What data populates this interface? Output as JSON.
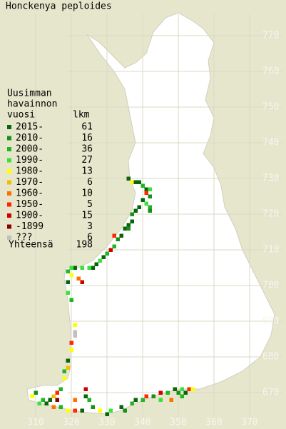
{
  "title": "Honckenya peploides",
  "legend": {
    "header": [
      "Uusimman",
      "havainnon",
      "vuosi"
    ],
    "count_header": "lkm",
    "entries": [
      {
        "label": "2015-",
        "count": 61,
        "color": "#0a640a"
      },
      {
        "label": "2010-",
        "count": 16,
        "color": "#189018"
      },
      {
        "label": "2000-",
        "count": 36,
        "color": "#22b422"
      },
      {
        "label": "1990-",
        "count": 27,
        "color": "#3ce03c"
      },
      {
        "label": "1980-",
        "count": 13,
        "color": "#ffff00"
      },
      {
        "label": "1970-",
        "count": 6,
        "color": "#f0c000"
      },
      {
        "label": "1960-",
        "count": 10,
        "color": "#ff7000"
      },
      {
        "label": "1950-",
        "count": 5,
        "color": "#ff2800"
      },
      {
        "label": "1900-",
        "count": 15,
        "color": "#d00000"
      },
      {
        "label": "-1899",
        "count": 3,
        "color": "#8b0000"
      },
      {
        "label": "???",
        "count": 6,
        "color": "#c0c0c0"
      }
    ],
    "total_label": "Yhteensä",
    "total": 198
  },
  "x_ticks": [
    310,
    320,
    330,
    340,
    350,
    360,
    370
  ],
  "y_ticks": [
    670,
    680,
    690,
    700,
    710,
    720,
    730,
    740,
    750,
    760,
    770
  ],
  "squares": [
    [
      336,
      730,
      0
    ],
    [
      337,
      729,
      4
    ],
    [
      338,
      729,
      0
    ],
    [
      339,
      729,
      0
    ],
    [
      340,
      728,
      2
    ],
    [
      341,
      727,
      0
    ],
    [
      342,
      727,
      3
    ],
    [
      341,
      726,
      7
    ],
    [
      342,
      725,
      1
    ],
    [
      340,
      724,
      0
    ],
    [
      341,
      723,
      3
    ],
    [
      342,
      722,
      2
    ],
    [
      339,
      722,
      0
    ],
    [
      338,
      721,
      0
    ],
    [
      342,
      721,
      1
    ],
    [
      337,
      720,
      1
    ],
    [
      337,
      718,
      0
    ],
    [
      336,
      717,
      0
    ],
    [
      335,
      716,
      0
    ],
    [
      336,
      716,
      1
    ],
    [
      334,
      714,
      0
    ],
    [
      332,
      714,
      7
    ],
    [
      333,
      713,
      1
    ],
    [
      332,
      711,
      2
    ],
    [
      331,
      710,
      8
    ],
    [
      330,
      709,
      2
    ],
    [
      329,
      708,
      0
    ],
    [
      328,
      707,
      3
    ],
    [
      327,
      706,
      0
    ],
    [
      326,
      705,
      0
    ],
    [
      325,
      705,
      3
    ],
    [
      323,
      705,
      3
    ],
    [
      321,
      705,
      0
    ],
    [
      320,
      705,
      3
    ],
    [
      319,
      704,
      2
    ],
    [
      320,
      703,
      4
    ],
    [
      322,
      702,
      6
    ],
    [
      323,
      701,
      8
    ],
    [
      319,
      701,
      0
    ],
    [
      319,
      698,
      3
    ],
    [
      320,
      696,
      2
    ],
    [
      321,
      689,
      4
    ],
    [
      321,
      687,
      10
    ],
    [
      321,
      686,
      10
    ],
    [
      320,
      684,
      7
    ],
    [
      320,
      682,
      4
    ],
    [
      319,
      679,
      0
    ],
    [
      319,
      677,
      5
    ],
    [
      318,
      676,
      2
    ],
    [
      318,
      674,
      4
    ],
    [
      317,
      671,
      2
    ],
    [
      316,
      670,
      7
    ],
    [
      315,
      669,
      5
    ],
    [
      314,
      668,
      0
    ],
    [
      312,
      668,
      2
    ],
    [
      310,
      670,
      1
    ],
    [
      309,
      669,
      4
    ],
    [
      311,
      667,
      3
    ],
    [
      313,
      667,
      0
    ],
    [
      315,
      666,
      6
    ],
    [
      317,
      666,
      2
    ],
    [
      319,
      665,
      4
    ],
    [
      321,
      665,
      7
    ],
    [
      323,
      665,
      0
    ],
    [
      324,
      671,
      8
    ],
    [
      324,
      669,
      0
    ],
    [
      325,
      668,
      2
    ],
    [
      326,
      666,
      1
    ],
    [
      328,
      665,
      4
    ],
    [
      330,
      664,
      0
    ],
    [
      331,
      665,
      3
    ],
    [
      334,
      666,
      0
    ],
    [
      335,
      665,
      1
    ],
    [
      337,
      667,
      2
    ],
    [
      338,
      668,
      0
    ],
    [
      340,
      668,
      2
    ],
    [
      341,
      669,
      7
    ],
    [
      343,
      669,
      1
    ],
    [
      345,
      670,
      8
    ],
    [
      347,
      670,
      2
    ],
    [
      349,
      671,
      0
    ],
    [
      350,
      670,
      1
    ],
    [
      351,
      671,
      3
    ],
    [
      352,
      670,
      0
    ],
    [
      353,
      671,
      7
    ],
    [
      354,
      671,
      4
    ],
    [
      351,
      669,
      2
    ],
    [
      345,
      668,
      3
    ],
    [
      348,
      668,
      6
    ],
    [
      321,
      668,
      6
    ],
    [
      316,
      668,
      9
    ]
  ]
}
